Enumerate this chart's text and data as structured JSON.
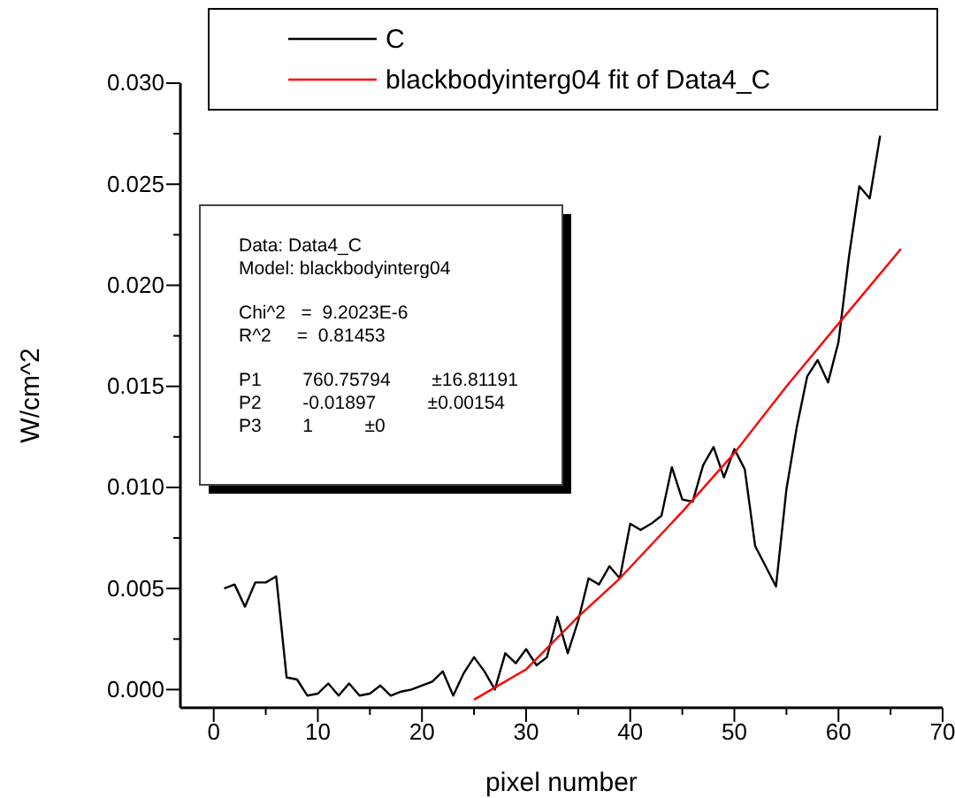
{
  "chart_data": {
    "type": "line",
    "xlabel": "pixel number",
    "ylabel": "W/cm^2",
    "xlim": [
      -3.2,
      70
    ],
    "ylim": [
      -0.0009,
      0.03
    ],
    "xticks": [
      0,
      {
        "value": 5,
        "label": null
      },
      10,
      {
        "value": 15,
        "label": null
      },
      20,
      {
        "value": 25,
        "label": null
      },
      30,
      {
        "value": 35,
        "label": null
      },
      40,
      {
        "value": 45,
        "label": null
      },
      50,
      {
        "value": 55,
        "label": null
      },
      60,
      {
        "value": 65,
        "label": null
      },
      70
    ],
    "yticks": [
      "0.000",
      {
        "value": 0.0025,
        "label": null
      },
      {
        "value": 0.005,
        "label": "0.005"
      },
      {
        "value": 0.0075,
        "label": null
      },
      {
        "value": 0.01,
        "label": "0.010"
      },
      {
        "value": 0.0125,
        "label": null
      },
      {
        "value": 0.015,
        "label": "0.015"
      },
      {
        "value": 0.0175,
        "label": null
      },
      {
        "value": 0.02,
        "label": "0.020"
      },
      {
        "value": 0.0225,
        "label": null
      },
      {
        "value": 0.025,
        "label": "0.025"
      },
      {
        "value": 0.0275,
        "label": null
      },
      {
        "value": 0.03,
        "label": "0.030"
      }
    ],
    "grid": false,
    "legend": "top",
    "line_style": "solid",
    "marker": "none",
    "series": [
      {
        "name": "C",
        "color": "#000000",
        "x": [
          1,
          2,
          3,
          4,
          5,
          6,
          7,
          8,
          9,
          10,
          11,
          12,
          13,
          14,
          15,
          16,
          17,
          18,
          19,
          20,
          21,
          22,
          23,
          24,
          25,
          26,
          27,
          28,
          29,
          30,
          31,
          32,
          33,
          34,
          35,
          36,
          37,
          38,
          39,
          40,
          41,
          42,
          43,
          44,
          45,
          46,
          47,
          48,
          49,
          50,
          51,
          52,
          53,
          54,
          55,
          56,
          57,
          58,
          59,
          60,
          61,
          62,
          63,
          64
        ],
        "values": [
          0.005,
          0.0052,
          0.0041,
          0.0053,
          0.0053,
          0.0056,
          0.0006,
          0.0005,
          -0.0003,
          -0.0002,
          0.0003,
          -0.0003,
          0.0003,
          -0.0003,
          -0.0002,
          0.0002,
          -0.0003,
          -0.0001,
          0.0,
          0.0002,
          0.0004,
          0.0009,
          -0.0003,
          0.0008,
          0.0016,
          0.0009,
          0.0,
          0.0018,
          0.0013,
          0.002,
          0.0012,
          0.0016,
          0.0036,
          0.0018,
          0.0034,
          0.0055,
          0.0052,
          0.0061,
          0.0055,
          0.0082,
          0.0079,
          0.0082,
          0.0086,
          0.011,
          0.0094,
          0.0093,
          0.0111,
          0.012,
          0.0105,
          0.0119,
          0.0109,
          0.0071,
          0.0061,
          0.0051,
          0.0099,
          0.013,
          0.0155,
          0.0163,
          0.0152,
          0.0172,
          0.0214,
          0.0249,
          0.0243,
          0.0274
        ]
      },
      {
        "name": "blackbodyinterg04 fit of Data4_C",
        "color": "#ff0000",
        "x": [
          25,
          27,
          30,
          35,
          39,
          45,
          50,
          55,
          60,
          66
        ],
        "values": [
          -0.0005,
          0.0001,
          0.001,
          0.0036,
          0.0055,
          0.0088,
          0.0117,
          0.015,
          0.0181,
          0.0218
        ]
      }
    ],
    "annotations": [
      "Data: Data4_C",
      "Model: blackbodyinterg04",
      "Chi^2   =  9.2023E-6",
      "R^2     =  0.81453",
      "P1        760.75794        ±16.81191",
      "P2        -0.01897          ±0.00154",
      "P3        1          ±0"
    ]
  }
}
